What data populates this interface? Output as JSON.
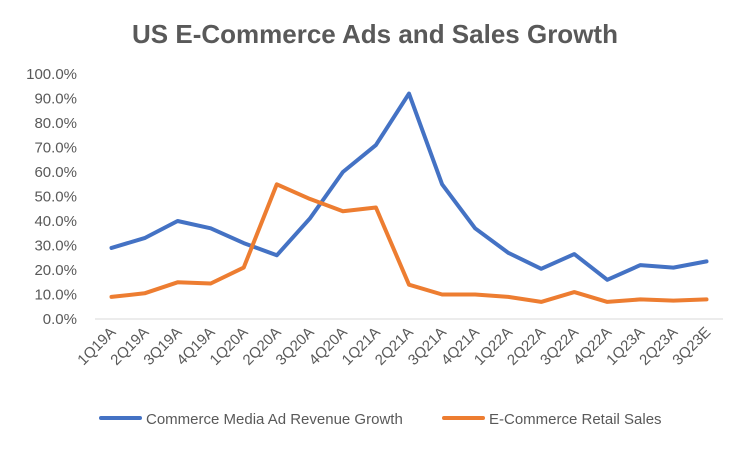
{
  "chart_data": {
    "type": "line",
    "title": "US E-Commerce Ads and Sales Growth",
    "xlabel": "",
    "ylabel": "",
    "ylim": [
      0,
      1.0
    ],
    "y_ticks": [
      "0.0%",
      "10.0%",
      "20.0%",
      "30.0%",
      "40.0%",
      "50.0%",
      "60.0%",
      "70.0%",
      "80.0%",
      "90.0%",
      "100.0%"
    ],
    "grid": false,
    "legend": "bottom",
    "categories": [
      "1Q19A",
      "2Q19A",
      "3Q19A",
      "4Q19A",
      "1Q20A",
      "2Q20A",
      "3Q20A",
      "4Q20A",
      "1Q21A",
      "2Q21A",
      "3Q21A",
      "4Q21A",
      "1Q22A",
      "2Q22A",
      "3Q22A",
      "4Q22A",
      "1Q23A",
      "2Q23A",
      "3Q23E"
    ],
    "series": [
      {
        "name": "Commerce Media Ad Revenue Growth",
        "color": "#4472c4",
        "values": [
          0.29,
          0.33,
          0.4,
          0.37,
          0.31,
          0.26,
          0.41,
          0.6,
          0.71,
          0.92,
          0.55,
          0.37,
          0.27,
          0.205,
          0.265,
          0.16,
          0.22,
          0.21,
          0.235
        ]
      },
      {
        "name": "E-Commerce Retail Sales",
        "color": "#ed7d31",
        "values": [
          0.09,
          0.105,
          0.15,
          0.145,
          0.21,
          0.55,
          0.49,
          0.44,
          0.455,
          0.14,
          0.1,
          0.1,
          0.09,
          0.07,
          0.11,
          0.07,
          0.08,
          0.075,
          0.08
        ]
      }
    ]
  }
}
